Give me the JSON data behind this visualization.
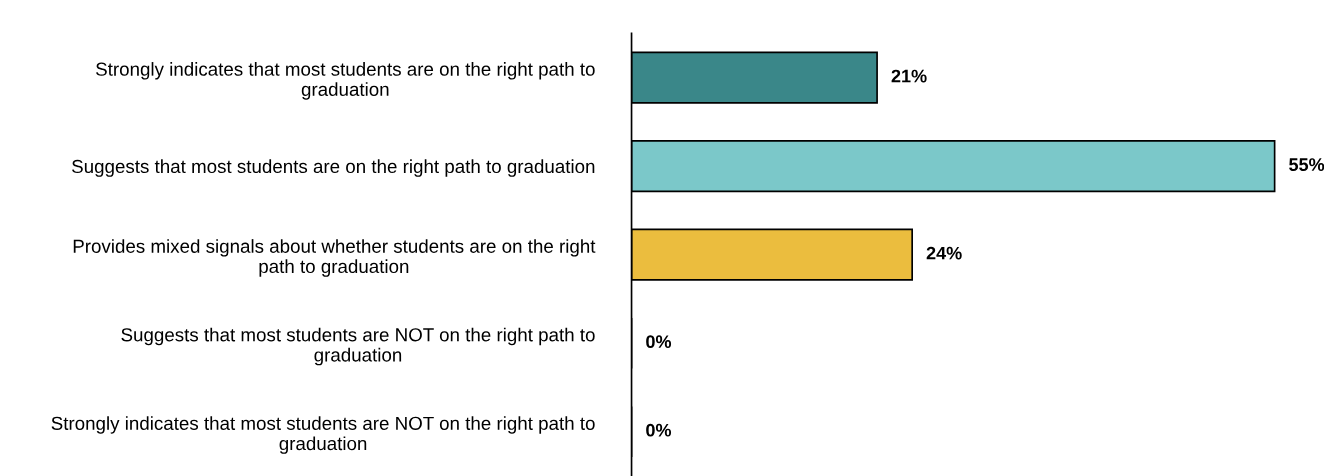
{
  "chart_data": {
    "type": "bar",
    "orientation": "horizontal",
    "categories": [
      "Strongly indicates that most students are on the right path to graduation",
      "Suggests that most students are on the right path to graduation",
      "Provides mixed signals about whether students are on the right path to graduation",
      "Suggests that most students are NOT on the right path to graduation",
      "Strongly indicates that most students are NOT on the right path to graduation"
    ],
    "values": [
      21,
      55,
      24,
      0,
      0
    ],
    "colors": [
      "#3a8789",
      "#7bc8c9",
      "#ebbd3e",
      "#a6a6a6",
      "#a6a6a6"
    ],
    "value_labels": [
      "21%",
      "55%",
      "24%",
      "0%",
      "0%"
    ],
    "grid": false
  }
}
